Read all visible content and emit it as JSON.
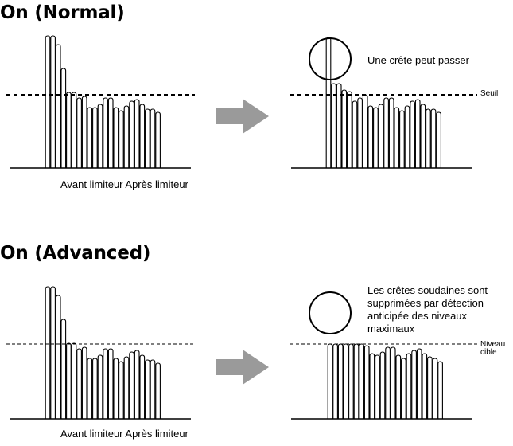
{
  "sections": [
    {
      "title": "On (Normal)",
      "caption": "Avant limiteur Après limiteur",
      "annotation": "Une crête peut passer",
      "threshold_label": "Seuil"
    },
    {
      "title": "On (Advanced)",
      "caption": "Avant limiteur Après limiteur",
      "annotation": "Les crêtes soudaines sont\nsupprimées par détection\nanticipée des niveaux\nmaximaux",
      "threshold_label": "Niveau\ncible"
    }
  ],
  "colors": {
    "stroke": "#000000",
    "arrow": "#9a9a9a"
  },
  "icons": [
    "right-arrow-icon",
    "circle-highlight-icon"
  ]
}
